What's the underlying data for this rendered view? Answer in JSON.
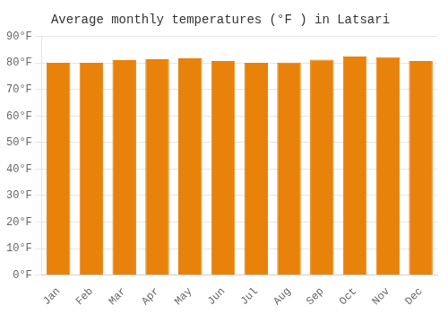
{
  "chart_data": {
    "type": "bar",
    "title": "Average monthly temperatures (°F ) in Latsari",
    "categories": [
      "Jan",
      "Feb",
      "Mar",
      "Apr",
      "May",
      "Jun",
      "Jul",
      "Aug",
      "Sep",
      "Oct",
      "Nov",
      "Dec"
    ],
    "values": [
      80.1,
      80.1,
      81.1,
      81.5,
      81.8,
      80.8,
      80.1,
      80.2,
      81.3,
      82.5,
      82.2,
      80.8
    ],
    "color": "#E8820A",
    "ylim": [
      0,
      90
    ],
    "yticks": [
      {
        "value": 0,
        "label": "0°F"
      },
      {
        "value": 10,
        "label": "10°F"
      },
      {
        "value": 20,
        "label": "20°F"
      },
      {
        "value": 30,
        "label": "30°F"
      },
      {
        "value": 40,
        "label": "40°F"
      },
      {
        "value": 50,
        "label": "50°F"
      },
      {
        "value": 60,
        "label": "60°F"
      },
      {
        "value": 70,
        "label": "70°F"
      },
      {
        "value": 80,
        "label": "80°F"
      },
      {
        "value": 90,
        "label": "90°F"
      }
    ],
    "grid": "y"
  }
}
